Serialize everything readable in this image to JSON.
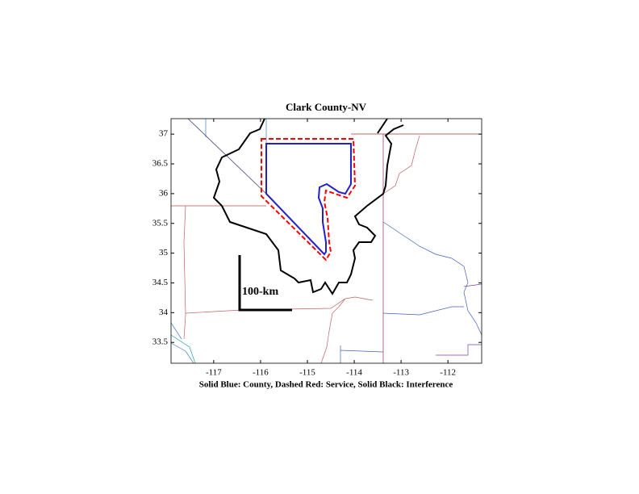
{
  "chart_data": {
    "type": "map",
    "title": "Clark County-NV",
    "xlabel": "Solid Blue: County, Dashed Red: Service, Solid Black: Interference",
    "annotation": "100-km",
    "xlim": [
      -117.91,
      -111.28
    ],
    "ylim": [
      33.15,
      37.26
    ],
    "xticks": [
      -117,
      -116,
      -115,
      -114,
      -113,
      -112
    ],
    "yticks": [
      33.5,
      34,
      34.5,
      35,
      35.5,
      36,
      36.5,
      37
    ]
  }
}
